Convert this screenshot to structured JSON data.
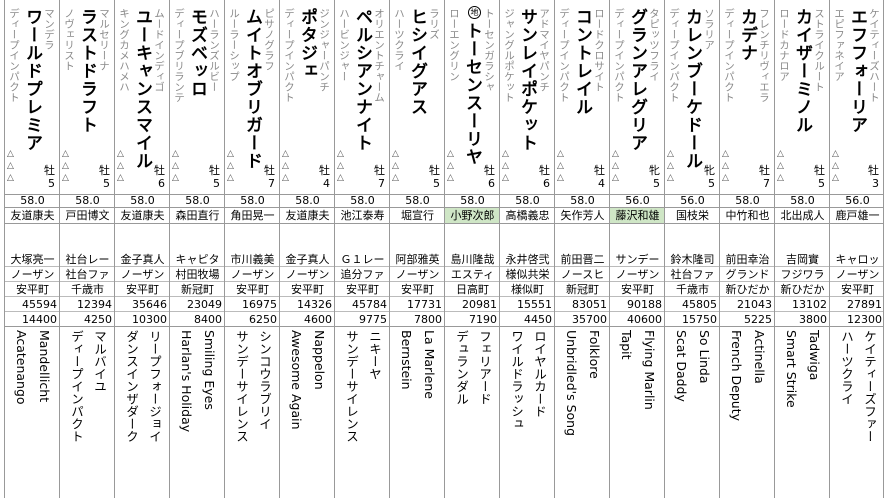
{
  "horses": [
    {
      "sire": "エピファネイア",
      "name": "エフフォーリア",
      "dam": "ケイティーズハート",
      "sex": "牡",
      "age": "3",
      "weight": "56.0",
      "jockey": "鹿戸雄一",
      "owner": "キャロッ",
      "breeder": "ノーザン",
      "stable": "安平町",
      "prize1": "27891",
      "prize2": "12300",
      "ped_sire": "ハーツクライ",
      "ped_dam": "ケイティーズファー",
      "mark": "",
      "highlight": false
    },
    {
      "sire": "ロードカナロア",
      "name": "カイザーミノル",
      "dam": "ストライクルート",
      "sex": "牡",
      "age": "5",
      "weight": "58.0",
      "jockey": "北出成人",
      "owner": "吉岡實",
      "breeder": "フジワラ",
      "stable": "新ひだか",
      "prize1": "13102",
      "prize2": "3800",
      "ped_sire": "Smart Strike",
      "ped_dam": "Tadwiga",
      "mark": "",
      "highlight": false
    },
    {
      "sire": "ディープインパクト",
      "name": "カデナ",
      "dam": "フレンチリヴィエラ",
      "sex": "牡",
      "age": "7",
      "weight": "58.0",
      "jockey": "中竹和也",
      "owner": "前田幸治",
      "breeder": "グランド",
      "stable": "新ひだか",
      "prize1": "21043",
      "prize2": "5225",
      "ped_sire": "French Deputy",
      "ped_dam": "Actinella",
      "mark": "",
      "highlight": false
    },
    {
      "sire": "ディープインパクト",
      "name": "カレンブーケドール",
      "dam": "ソラリア",
      "sex": "牝",
      "age": "5",
      "weight": "56.0",
      "jockey": "国枝栄",
      "owner": "鈴木隆司",
      "breeder": "社台ファ",
      "stable": "千歳市",
      "prize1": "45805",
      "prize2": "15750",
      "ped_sire": "Scat Daddy",
      "ped_dam": "So Linda",
      "mark": "",
      "highlight": false
    },
    {
      "sire": "ディープインパクト",
      "name": "グランアレグリア",
      "dam": "タピッツフライ",
      "sex": "牝",
      "age": "5",
      "weight": "56.0",
      "jockey": "藤沢和雄",
      "owner": "サンデー",
      "breeder": "ノーザン",
      "stable": "安平町",
      "prize1": "90188",
      "prize2": "40600",
      "ped_sire": "Tapit",
      "ped_dam": "Flying Marlin",
      "mark": "",
      "highlight": true
    },
    {
      "sire": "ディープインパクト",
      "name": "コントレイル",
      "dam": "ロードクロサイト",
      "sex": "牡",
      "age": "4",
      "weight": "58.0",
      "jockey": "矢作芳人",
      "owner": "前田晋二",
      "breeder": "ノースヒ",
      "stable": "新冠町",
      "prize1": "83051",
      "prize2": "35700",
      "ped_sire": "Unbridled's Song",
      "ped_dam": "Folklore",
      "mark": "",
      "highlight": false
    },
    {
      "sire": "ジャングルポケット",
      "name": "サンレイポケット",
      "dam": "アドマイヤパンチ",
      "sex": "牡",
      "age": "6",
      "weight": "58.0",
      "jockey": "高橋義忠",
      "owner": "永井啓弐",
      "breeder": "様似共栄",
      "stable": "様似町",
      "prize1": "15551",
      "prize2": "4450",
      "ped_sire": "ワイルドラッシュ",
      "ped_dam": "ロイヤルカード",
      "mark": "",
      "highlight": false
    },
    {
      "sire": "ローエングリン",
      "name": "トーセンスーリヤ",
      "dam": "トーセンガラシャ",
      "sex": "牡",
      "age": "6",
      "weight": "58.0",
      "jockey": "小野次郎",
      "owner": "島川隆哉",
      "breeder": "エスティ",
      "stable": "日高町",
      "prize1": "20981",
      "prize2": "7190",
      "ped_sire": "デュランダル",
      "ped_dam": "フェリアード",
      "mark": "地",
      "highlight": true
    },
    {
      "sire": "ハーツクライ",
      "name": "ヒシイグアス",
      "dam": "ラリズ",
      "sex": "牡",
      "age": "5",
      "weight": "58.0",
      "jockey": "堀宣行",
      "owner": "阿部雅英",
      "breeder": "ノーザン",
      "stable": "安平町",
      "prize1": "17731",
      "prize2": "7800",
      "ped_sire": "Bernstein",
      "ped_dam": "La Marlene",
      "mark": "",
      "highlight": false
    },
    {
      "sire": "ハービンジャー",
      "name": "ペルシアンナイト",
      "dam": "オリエントチャーム",
      "sex": "牡",
      "age": "7",
      "weight": "58.0",
      "jockey": "池江泰寿",
      "owner": "Ｇ１レー",
      "breeder": "追分ファ",
      "stable": "安平町",
      "prize1": "45784",
      "prize2": "9775",
      "ped_sire": "サンデーサイレンス",
      "ped_dam": "ニキーヤ",
      "mark": "",
      "highlight": false
    },
    {
      "sire": "ディープインパクト",
      "name": "ポタジェ",
      "dam": "ジンジャーパンチ",
      "sex": "牡",
      "age": "4",
      "weight": "58.0",
      "jockey": "友道康夫",
      "owner": "金子真人",
      "breeder": "ノーザン",
      "stable": "安平町",
      "prize1": "14326",
      "prize2": "4600",
      "ped_sire": "Awesome Again",
      "ped_dam": "Nappelon",
      "mark": "",
      "highlight": false
    },
    {
      "sire": "ルーラーシップ",
      "name": "ムイトオブリガード",
      "dam": "ピサノグラフ",
      "sex": "牡",
      "age": "7",
      "weight": "58.0",
      "jockey": "角田晃一",
      "owner": "市川義美",
      "breeder": "ノーザン",
      "stable": "安平町",
      "prize1": "16975",
      "prize2": "6250",
      "ped_sire": "サンデーサイレンス",
      "ped_dam": "シンコウラブリイ",
      "mark": "",
      "highlight": false
    },
    {
      "sire": "ディープブリランテ",
      "name": "モズベッロ",
      "dam": "ハーランズルビー",
      "sex": "牡",
      "age": "5",
      "weight": "58.0",
      "jockey": "森田直行",
      "owner": "キャピタ",
      "breeder": "村田牧場",
      "stable": "新冠町",
      "prize1": "23049",
      "prize2": "8400",
      "ped_sire": "Harlan's Holiday",
      "ped_dam": "Smiling Eyes",
      "mark": "",
      "highlight": false
    },
    {
      "sire": "キングカメハメハ",
      "name": "ユーキャンスマイル",
      "dam": "ムードインディゴ",
      "sex": "牡",
      "age": "6",
      "weight": "58.0",
      "jockey": "友道康夫",
      "owner": "金子真人",
      "breeder": "ノーザン",
      "stable": "安平町",
      "prize1": "35646",
      "prize2": "10300",
      "ped_sire": "ダンスインザダーク",
      "ped_dam": "リープフォージョイ",
      "mark": "",
      "highlight": false
    },
    {
      "sire": "ノヴェリスト",
      "name": "ラストドラフト",
      "dam": "マルセリーナ",
      "sex": "牡",
      "age": "5",
      "weight": "58.0",
      "jockey": "戸田博文",
      "owner": "社台レー",
      "breeder": "社台ファ",
      "stable": "千歳市",
      "prize1": "12394",
      "prize2": "4250",
      "ped_sire": "ディープインパクト",
      "ped_dam": "マルバイユ",
      "mark": "",
      "highlight": false
    },
    {
      "sire": "ディープインパクト",
      "name": "ワールドプレミア",
      "dam": "マンデラ",
      "sex": "牡",
      "age": "5",
      "weight": "58.0",
      "jockey": "友道康夫",
      "owner": "大塚亮一",
      "breeder": "ノーザン",
      "stable": "安平町",
      "prize1": "45594",
      "prize2": "14400",
      "ped_sire": "Acatenango",
      "ped_dam": "Mandellicht",
      "mark": "",
      "highlight": false
    }
  ]
}
